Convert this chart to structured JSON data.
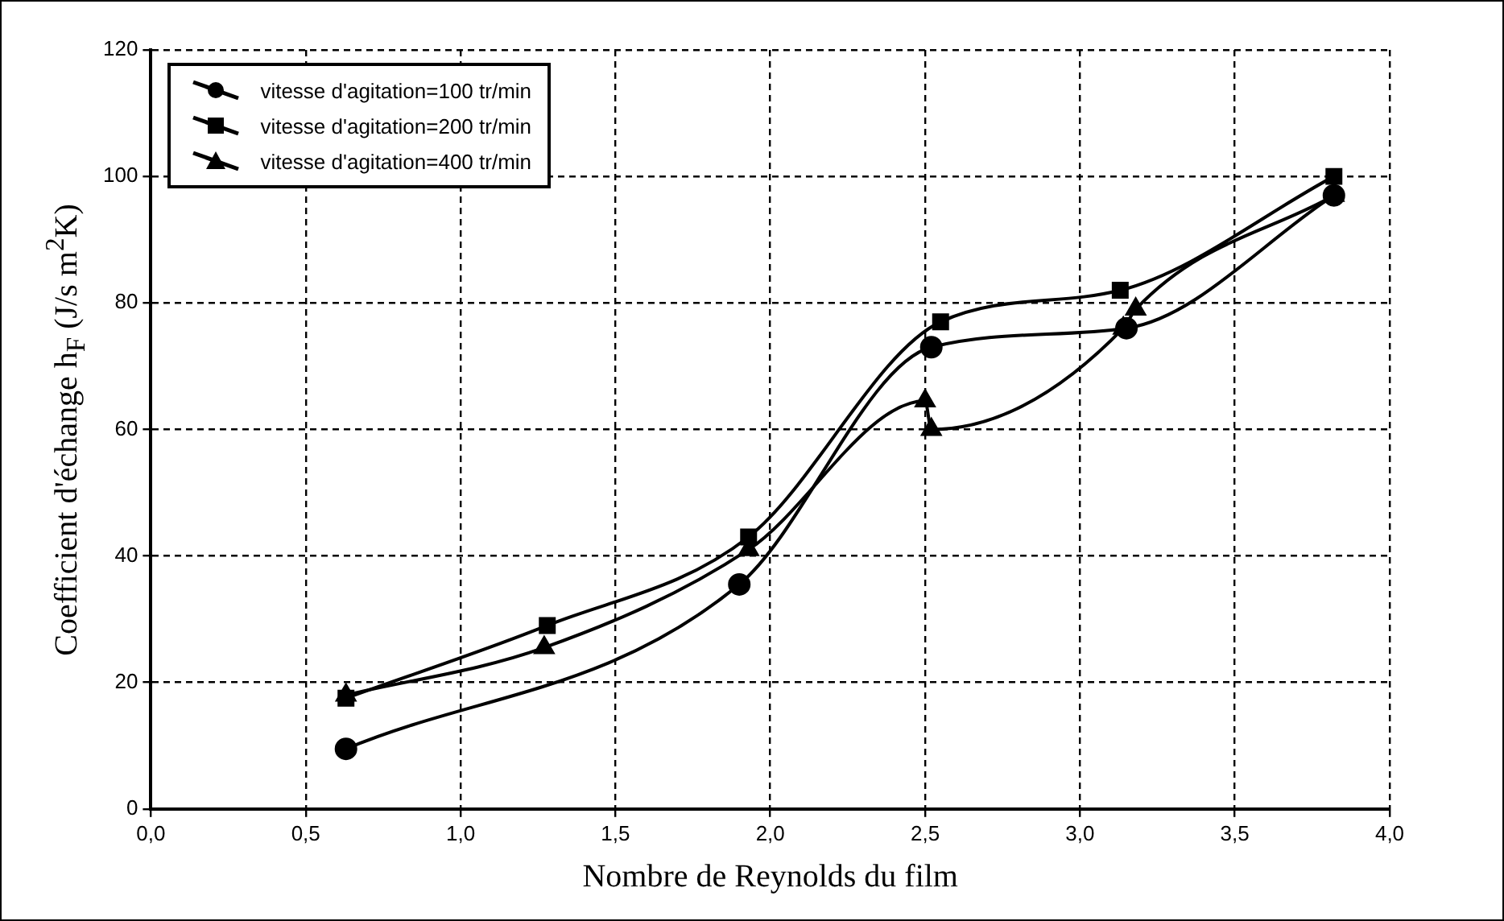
{
  "chart_data": {
    "type": "line",
    "xlabel": "Nombre de Reynolds du film",
    "ylabel": "Coefficient d'échange h$_{F}$ (J/s m$^{2}$K)",
    "xlim": [
      0,
      4
    ],
    "xticks": [
      {
        "value": 0,
        "label": "0,0"
      },
      {
        "value": 0.5,
        "label": "0,5"
      },
      {
        "value": 1,
        "label": "1,0"
      },
      {
        "value": 1.5,
        "label": "1,5"
      },
      {
        "value": 2,
        "label": "2,0"
      },
      {
        "value": 2.5,
        "label": "2,5"
      },
      {
        "value": 3,
        "label": "3,0"
      },
      {
        "value": 3.5,
        "label": "3,5"
      },
      {
        "value": 4,
        "label": "4,0"
      }
    ],
    "ylim": [
      0,
      120
    ],
    "yticks": [
      0,
      20,
      40,
      60,
      80,
      100,
      120
    ],
    "grid": true,
    "legend": "top left",
    "line_style": "solid",
    "series": [
      {
        "name": "vitesse d'agitation=100 tr/min",
        "color": "#000000",
        "marker": "circle",
        "x": [
          0.63,
          1.9,
          2.52,
          3.15,
          3.82
        ],
        "values": [
          9.5,
          35.5,
          73,
          76,
          97
        ]
      },
      {
        "name": "vitesse d'agitation=200 tr/min",
        "color": "#000000",
        "marker": "square",
        "x": [
          0.63,
          1.28,
          1.93,
          2.55,
          3.13,
          3.82
        ],
        "values": [
          17.5,
          29,
          43,
          77,
          82,
          100
        ]
      },
      {
        "name": "vitesse d'agitation=400 tr/min",
        "color": "#000000",
        "marker": "triangle",
        "x": [
          0.63,
          1.27,
          1.93,
          2.5,
          2.52,
          3.14,
          3.18,
          3.82
        ],
        "values": [
          18,
          25.5,
          41,
          64.5,
          60,
          76,
          79,
          97
        ]
      }
    ]
  }
}
